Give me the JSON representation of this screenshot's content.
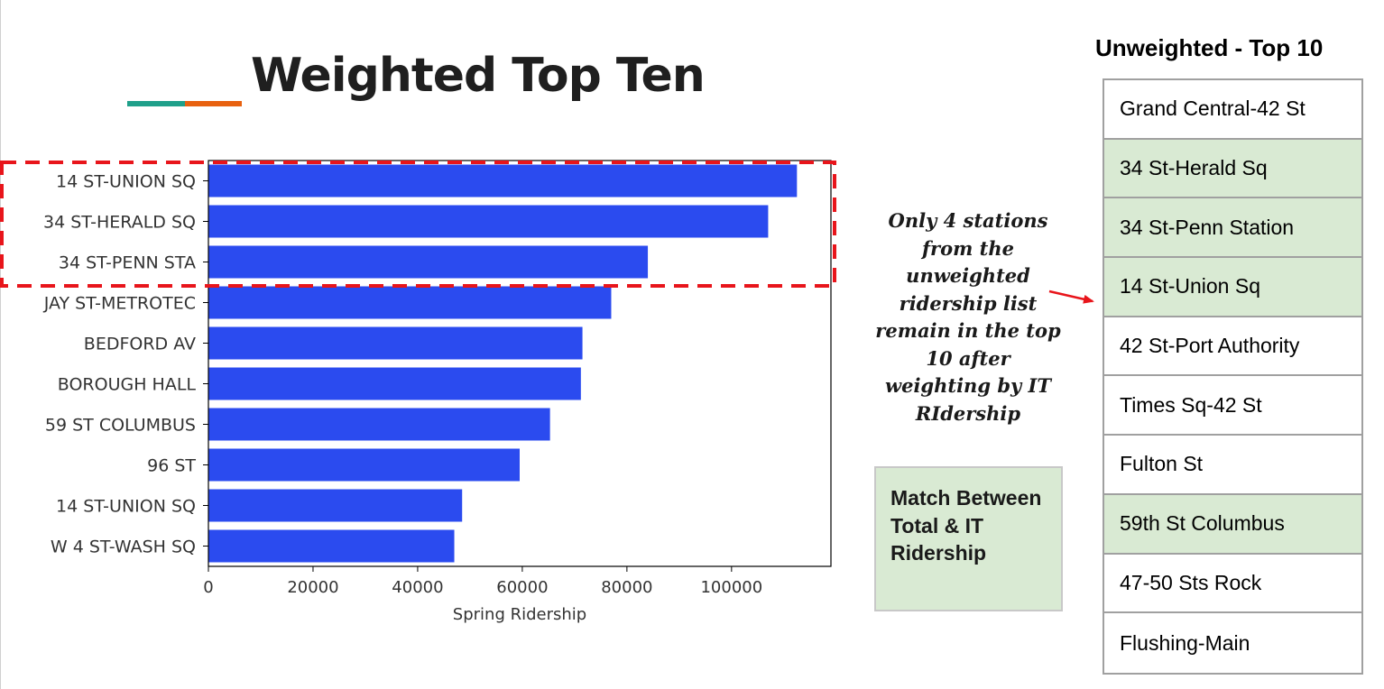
{
  "slide": {
    "title": "Weighted Top Ten",
    "accent_colors": [
      "#1fa08a",
      "#e8610f"
    ]
  },
  "chart_data": {
    "type": "bar",
    "orientation": "horizontal",
    "categories": [
      "14 ST-UNION SQ",
      "34 ST-HERALD SQ",
      "34 ST-PENN STA",
      "JAY ST-METROTEC",
      "BEDFORD AV",
      "BOROUGH HALL",
      "59 ST COLUMBUS",
      "96 ST",
      "14 ST-UNION SQ",
      "W 4 ST-WASH SQ"
    ],
    "values": [
      112500,
      107000,
      84000,
      77000,
      71500,
      71200,
      65300,
      59500,
      48500,
      47000
    ],
    "xlabel": "Spring Ridership",
    "ylabel": "",
    "title": "",
    "xlim": [
      0,
      119000
    ],
    "xticks": [
      0,
      20000,
      40000,
      60000,
      80000,
      100000
    ],
    "bar_color": "#2b4bef",
    "grid": false,
    "highlight": {
      "style": "red dashed box",
      "color": "#e8151b",
      "categories": [
        "14 ST-UNION SQ",
        "34 ST-HERALD SQ",
        "34 ST-PENN STA"
      ]
    }
  },
  "annotation": {
    "text": "Only 4 stations from the unweighted ridership list remain in the top 10 after weighting by IT RIdership",
    "arrow_color": "#e8151b"
  },
  "legend": {
    "text": "Match Between Total & IT Ridership",
    "color": "#d9ead3"
  },
  "unweighted_table": {
    "title": "Unweighted - Top 10",
    "rows": [
      {
        "name": "Grand Central-42 St",
        "match": false
      },
      {
        "name": "34 St-Herald Sq",
        "match": true
      },
      {
        "name": "34 St-Penn Station",
        "match": true
      },
      {
        "name": "14 St-Union Sq",
        "match": true
      },
      {
        "name": "42 St-Port Authority",
        "match": false
      },
      {
        "name": "Times Sq-42 St",
        "match": false
      },
      {
        "name": "Fulton St",
        "match": false
      },
      {
        "name": "59th St Columbus",
        "match": true
      },
      {
        "name": "47-50 Sts Rock",
        "match": false
      },
      {
        "name": "Flushing-Main",
        "match": false
      }
    ]
  }
}
